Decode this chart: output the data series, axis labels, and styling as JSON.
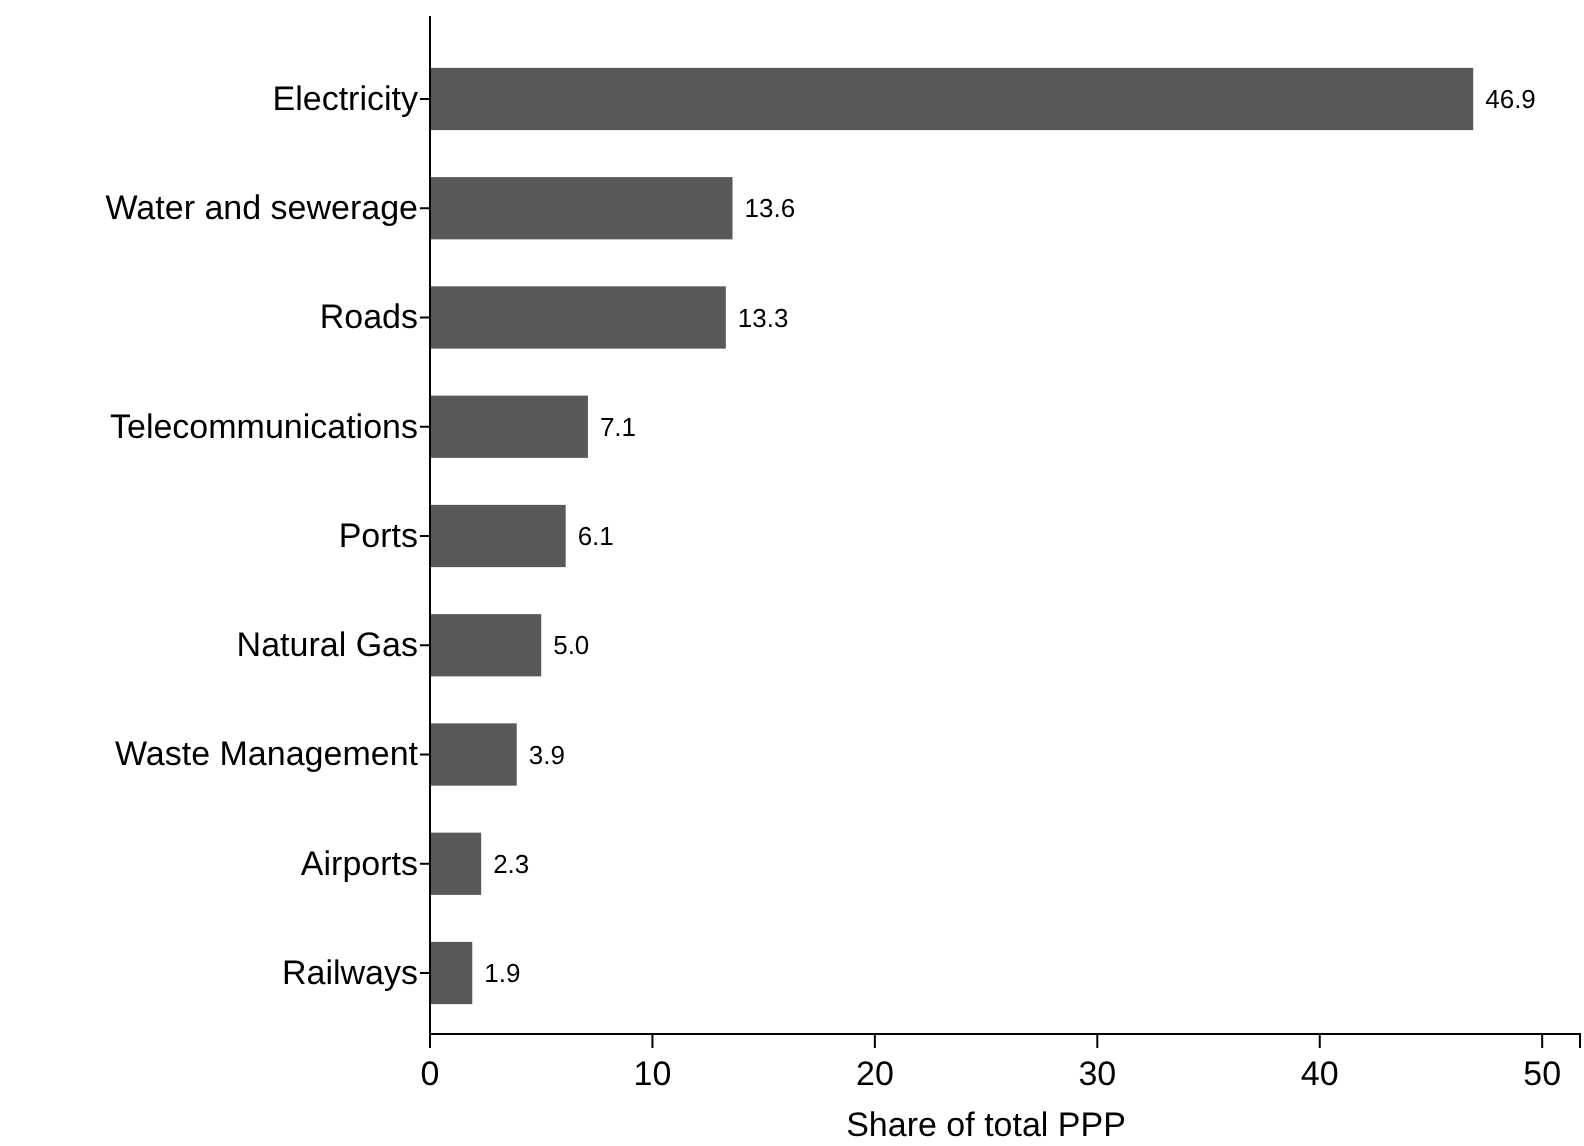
{
  "chart_data": {
    "type": "bar",
    "orientation": "horizontal",
    "xlabel": "Share of total PPP",
    "categories": [
      "Electricity",
      "Water and sewerage",
      "Roads",
      "Telecommunications",
      "Ports",
      "Natural Gas",
      "Waste Management",
      "Airports",
      "Railways"
    ],
    "values": [
      46.9,
      13.6,
      13.3,
      7.1,
      6.1,
      5.0,
      3.9,
      2.3,
      1.9
    ],
    "value_labels": [
      "46.9",
      "13.6",
      "13.3",
      "7.1",
      "6.1",
      "5.0",
      "3.9",
      "2.3",
      "1.9"
    ],
    "color": "#595959",
    "xlim": [
      0,
      51.7
    ],
    "xticks": [
      0,
      10,
      20,
      30,
      40,
      50
    ],
    "grid": false
  }
}
